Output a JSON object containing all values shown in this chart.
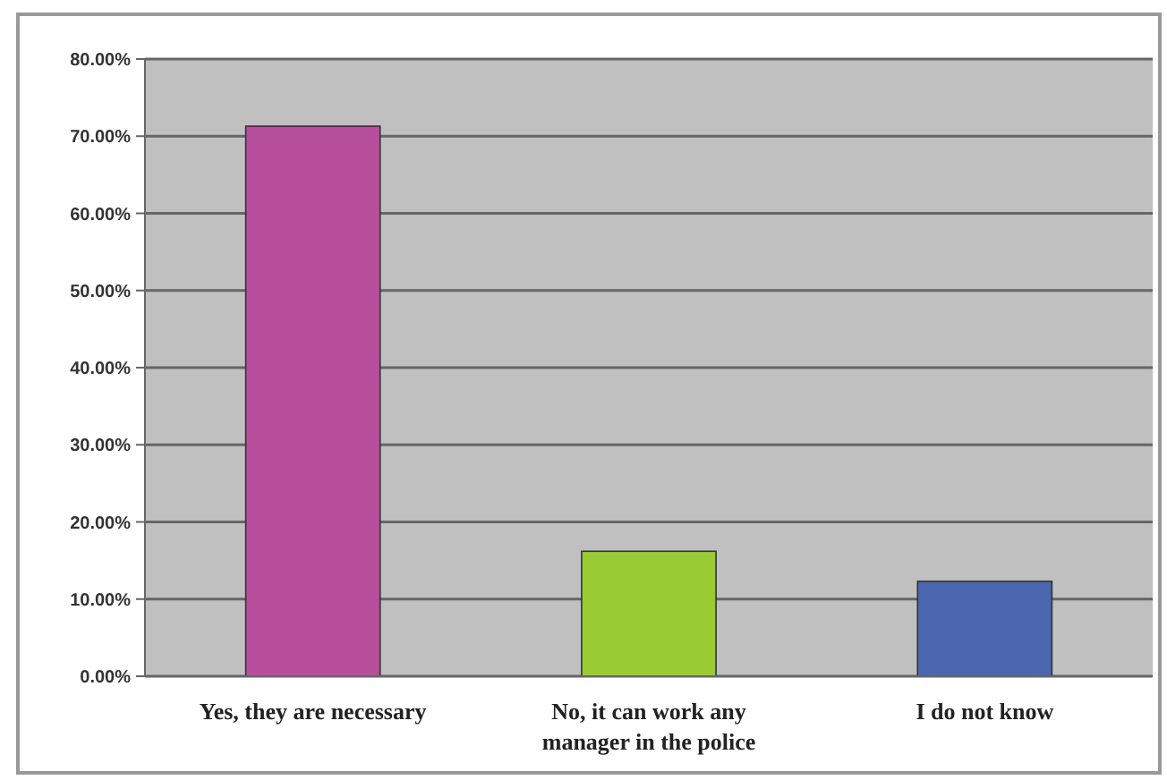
{
  "chart_data": {
    "type": "bar",
    "categories": [
      "Yes, they are necessary",
      "No, it can work any manager in the police",
      "I do not know"
    ],
    "values": [
      71.3,
      16.2,
      12.3
    ],
    "colors": [
      "#b84f9c",
      "#99cc33",
      "#4a67b0"
    ],
    "ylim": [
      0,
      80
    ],
    "yticks": [
      {
        "value": 0,
        "label": "0.00%"
      },
      {
        "value": 10,
        "label": "10.00%"
      },
      {
        "value": 20,
        "label": "20.00%"
      },
      {
        "value": 30,
        "label": "30.00%"
      },
      {
        "value": 40,
        "label": "40.00%"
      },
      {
        "value": 50,
        "label": "50.00%"
      },
      {
        "value": 60,
        "label": "60.00%"
      },
      {
        "value": 70,
        "label": "70.00%"
      },
      {
        "value": 80,
        "label": "80.00%"
      }
    ],
    "grid": "y"
  }
}
